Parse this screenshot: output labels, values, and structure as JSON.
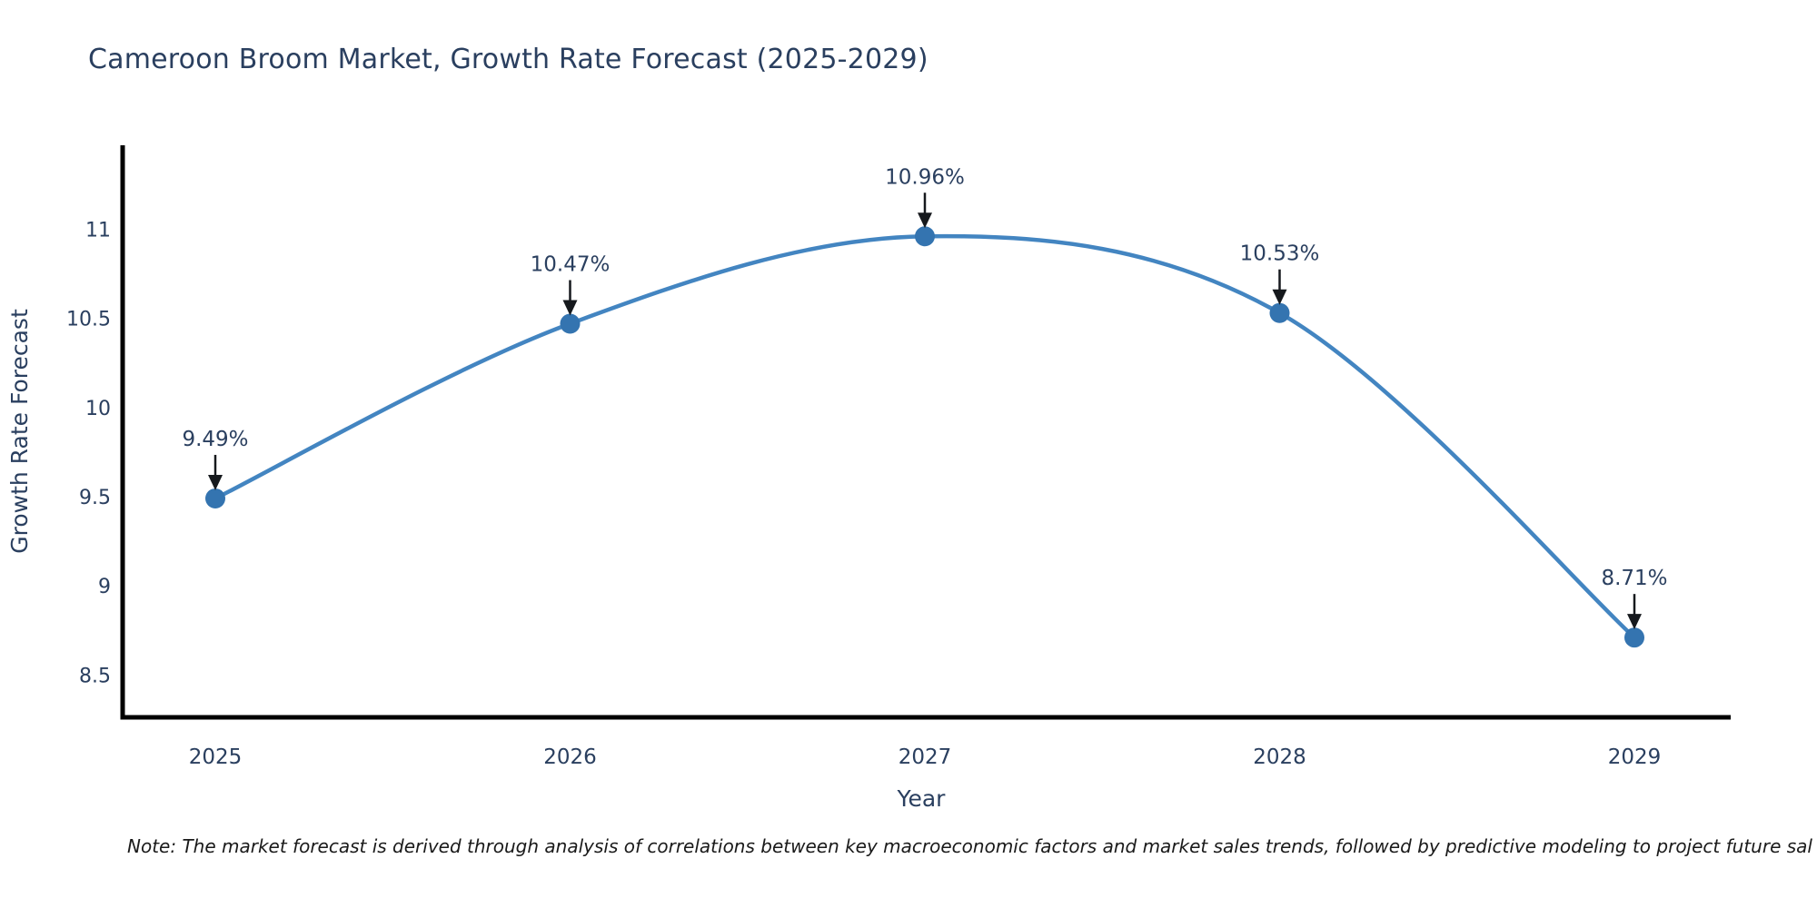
{
  "note": "Note: The market forecast is derived through analysis of correlations between key macroeconomic factors and market sales trends, followed by predictive modeling to project future sal",
  "chart_data": {
    "type": "line",
    "title": "Cameroon Broom Market, Growth Rate Forecast (2025-2029)",
    "xlabel": "Year",
    "ylabel": "Growth Rate Forecast",
    "x": [
      2025,
      2026,
      2027,
      2028,
      2029
    ],
    "values": [
      9.49,
      10.47,
      10.96,
      10.53,
      8.71
    ],
    "point_labels": [
      "9.49%",
      "10.47%",
      "10.96%",
      "10.53%",
      "8.71%"
    ],
    "yticks": [
      8.5,
      9,
      9.5,
      10,
      10.5,
      11
    ],
    "ylim": [
      8.25,
      11.47
    ],
    "grid": false,
    "legend_position": "none",
    "line_shape": "spline",
    "colors": {
      "line": "#4385c1",
      "marker": "#3474b0",
      "axis": "#000000",
      "text": "#2a3f5f",
      "arrow": "#16191d"
    }
  }
}
